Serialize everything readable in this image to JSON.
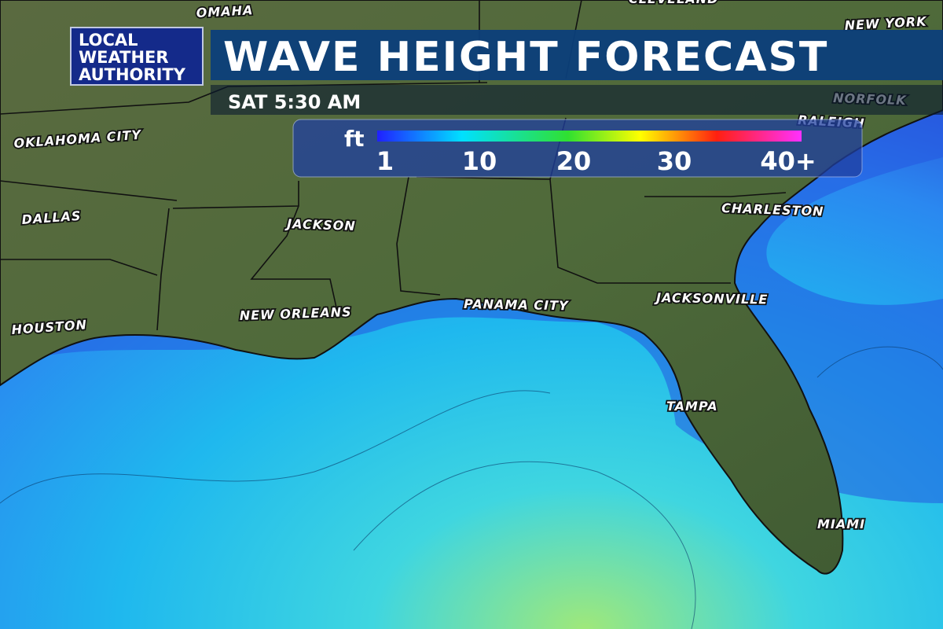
{
  "header": {
    "logo": [
      "LOCAL",
      "WEATHER",
      "AUTHORITY"
    ],
    "title": "WAVE HEIGHT FORECAST",
    "time": "SAT 5:30 AM"
  },
  "legend": {
    "unit": "ft",
    "labels": [
      "1",
      "10",
      "20",
      "30",
      "40+"
    ]
  },
  "cities": [
    "OMAHA",
    "CLEVELAND",
    "NEW YORK",
    "NORFOLK",
    "RALEIGH",
    "OKLAHOMA CITY",
    "DALLAS",
    "HOUSTON",
    "JACKSON",
    "NEW ORLEANS",
    "PANAMA CITY",
    "JACKSONVILLE",
    "CHARLESTON",
    "TAMPA",
    "MIAMI"
  ]
}
